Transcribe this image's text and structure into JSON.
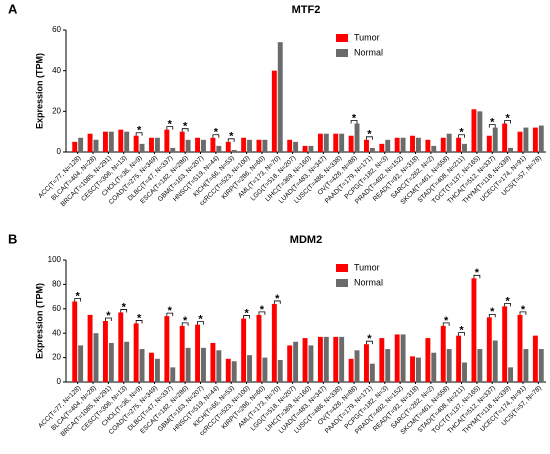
{
  "chart_data": [
    {
      "type": "bar",
      "panel": "A",
      "title": "MTF2",
      "ylabel": "Expression (TPM)",
      "categories": [
        "ACC(T=77, N=128)",
        "BLCA(T=404, N=28)",
        "BRCA(T=1085, N=291)",
        "CESC(T=306, N=13)",
        "CHOL(T=36, N=9)",
        "COAD(T=275, N=349)",
        "DLBC(T=47, N=337)",
        "ESCA(T=182, N=286)",
        "GBM(T=163, N=207)",
        "HNSC(T=519, N=44)",
        "KICH(T=66, N=53)",
        "ccRCC(T=523, N=100)",
        "KIRP(T=286, N=60)",
        "AML(T=173, N=70)",
        "LGG(T=518, N=207)",
        "LIHC(T=369, N=160)",
        "LUAD(T=483, N=347)",
        "LUSC(T=486, N=338)",
        "OV(T=426, N=88)",
        "PAAD(T=179, N=171)",
        "PCPG(T=182, N=3)",
        "PRAD(T=492, N=152)",
        "READ(T=92, N=318)",
        "SARC(T=262, N=2)",
        "SKCM(T=461, N=558)",
        "STAD(T=408, N=211)",
        "TGCT(T=137, N=165)",
        "THCA(T=512, N=337)",
        "THYM(T=118, N=339)",
        "UCEC(T=174, N=91)",
        "UCS(T=57, N=78)"
      ],
      "series": [
        {
          "name": "Tumor",
          "color": "#ff0000",
          "values": [
            5,
            9,
            10,
            11,
            8,
            7,
            11,
            10,
            7,
            7,
            5,
            7,
            6,
            40,
            6,
            3,
            9,
            9,
            8,
            6,
            4,
            7,
            8,
            6,
            7,
            7,
            21,
            8,
            14,
            10,
            12
          ]
        },
        {
          "name": "Normal",
          "color": "#6b6b6b",
          "values": [
            7,
            6,
            10,
            10,
            4,
            7,
            2,
            6,
            6,
            3,
            1,
            6,
            6,
            54,
            5,
            3,
            9,
            9,
            14,
            2,
            6,
            7,
            7,
            3,
            9,
            4,
            20,
            12,
            2,
            12,
            13
          ]
        }
      ],
      "significance": [
        null,
        null,
        null,
        null,
        "*",
        null,
        "*",
        "*",
        null,
        "*",
        "*",
        null,
        null,
        null,
        null,
        null,
        null,
        null,
        "*",
        "*",
        null,
        null,
        null,
        null,
        null,
        "*",
        null,
        "*",
        "*",
        null,
        null
      ],
      "ylim": [
        0,
        60
      ],
      "yticks": [
        0,
        20,
        40,
        60
      ],
      "legend": "top-right"
    },
    {
      "type": "bar",
      "panel": "B",
      "title": "MDM2",
      "ylabel": "Expression (TPM)",
      "categories": [
        "ACC(T=77, N=128)",
        "BLCA(T=404, N=28)",
        "BRCA(T=1085, N=291)",
        "CESC(T=306, N=13)",
        "CHOL(T=36, N=9)",
        "COAD(T=275, N=349)",
        "DLBC(T=47, N=337)",
        "ESCA(T=182, N=286)",
        "GBM(T=163, N=207)",
        "HNSC(T=519, N=44)",
        "KICH(T=66, N=53)",
        "ccRCC(T=523, N=100)",
        "KIRP(T=286, N=60)",
        "AML(T=173, N=70)",
        "LGG(T=518, N=207)",
        "LIHC(T=369, N=160)",
        "LUAD(T=483, N=347)",
        "LUSC(T=486, N=338)",
        "OV(T=426, N=88)",
        "PAAD(T=179, N=171)",
        "PCPG(T=182, N=3)",
        "PRAD(T=492, N=152)",
        "READ(T=92, N=318)",
        "SARC(T=262, N=2)",
        "SKCM(T=461, N=558)",
        "STAD(T=408, N=211)",
        "TGCT(T=137, N=165)",
        "THCA(T=512, N=337)",
        "THYM(T=118, N=339)",
        "UCEC(T=174, N=91)",
        "UCS(T=57, N=78)"
      ],
      "series": [
        {
          "name": "Tumor",
          "color": "#ff0000",
          "values": [
            66,
            55,
            50,
            57,
            48,
            24,
            54,
            46,
            47,
            32,
            19,
            52,
            55,
            64,
            30,
            36,
            37,
            37,
            19,
            31,
            36,
            39,
            21,
            36,
            46,
            38,
            85,
            53,
            62,
            55,
            38
          ]
        },
        {
          "name": "Normal",
          "color": "#6b6b6b",
          "values": [
            30,
            40,
            32,
            33,
            27,
            19,
            12,
            28,
            28,
            26,
            17,
            22,
            20,
            18,
            33,
            30,
            37,
            37,
            26,
            15,
            27,
            39,
            20,
            24,
            27,
            16,
            27,
            34,
            12,
            27,
            27
          ]
        }
      ],
      "significance": [
        "*",
        null,
        "*",
        "*",
        "*",
        null,
        "*",
        "*",
        "*",
        null,
        null,
        "*",
        "*",
        "*",
        null,
        null,
        null,
        null,
        null,
        "*",
        null,
        null,
        null,
        null,
        "*",
        "*",
        "*",
        "*",
        "*",
        "*",
        null
      ],
      "ylim": [
        0,
        100
      ],
      "yticks": [
        0,
        20,
        40,
        60,
        80,
        100
      ],
      "legend": "top-right"
    }
  ]
}
